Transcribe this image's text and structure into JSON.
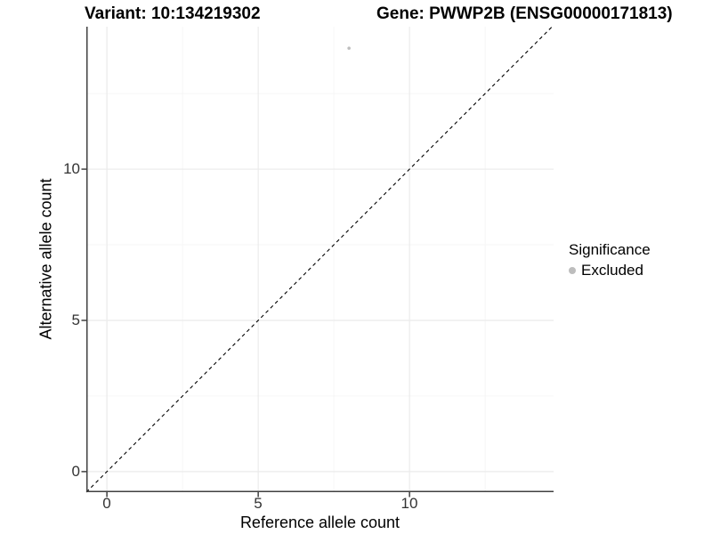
{
  "chart_data": {
    "type": "scatter",
    "titles": {
      "left": "Variant: 10:134219302",
      "right": "Gene: PWWP2B (ENSG00000171813)"
    },
    "xlabel": "Reference allele count",
    "ylabel": "Alternative allele count",
    "xlim": [
      -0.68,
      14.76
    ],
    "ylim": [
      -0.68,
      14.71
    ],
    "x_ticks": [
      0,
      5,
      10
    ],
    "y_ticks": [
      0,
      5,
      10
    ],
    "grid": {
      "major": [
        0,
        5,
        10
      ],
      "minor": [
        2.5,
        7.5,
        12.5
      ],
      "major_color": "#ebebeb",
      "minor_color": "#f6f6f6"
    },
    "identity_line": {
      "x1": -0.68,
      "y1": -0.68,
      "x2": 14.71,
      "y2": 14.71,
      "style": "dashed",
      "color": "#000000"
    },
    "series": [
      {
        "name": "Excluded",
        "color": "#bdbdbd",
        "point_radius": 1.8,
        "points": [
          {
            "x": 8,
            "y": 14
          }
        ]
      }
    ],
    "legend": {
      "title": "Significance",
      "position": "right",
      "items": [
        {
          "label": "Excluded",
          "color": "#bdbdbd"
        }
      ]
    },
    "colors": {
      "axis_line": "#404040",
      "tick_label": "#333333",
      "background": "#ffffff"
    }
  }
}
